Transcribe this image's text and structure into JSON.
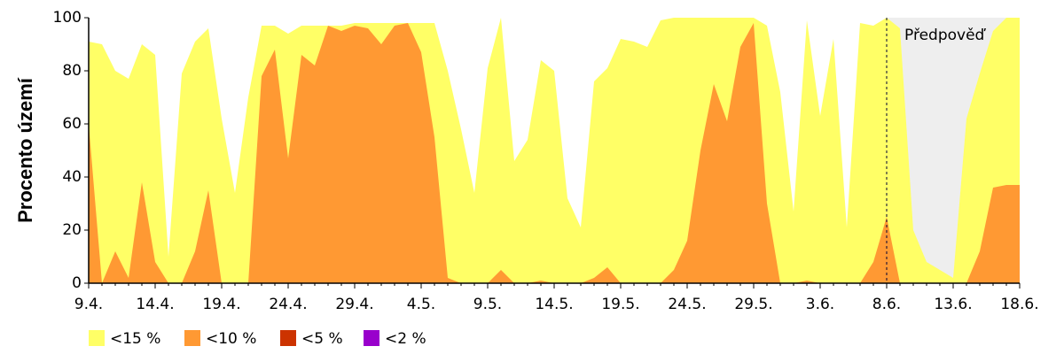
{
  "chart_data": {
    "type": "area",
    "ylabel": "Procento území",
    "annotation": "Předpověď",
    "forecast_start": "8.6.",
    "categories": [
      "9.4.",
      null,
      null,
      null,
      null,
      "14.4.",
      null,
      null,
      null,
      null,
      "19.4.",
      null,
      null,
      null,
      null,
      "24.4.",
      null,
      null,
      null,
      null,
      "29.4.",
      null,
      null,
      null,
      null,
      "4.5.",
      null,
      null,
      null,
      null,
      "9.5.",
      null,
      null,
      null,
      null,
      "14.5.",
      null,
      null,
      null,
      null,
      "19.5.",
      null,
      null,
      null,
      null,
      "24.5.",
      null,
      null,
      null,
      null,
      "29.5.",
      null,
      null,
      null,
      null,
      "3.6.",
      null,
      null,
      null,
      null,
      "8.6.",
      null,
      null,
      null,
      null,
      "13.6.",
      null,
      null,
      null,
      null,
      "18.6."
    ],
    "series": [
      {
        "name": "<15 %",
        "color": "#ffff66",
        "values": [
          91,
          90,
          80,
          77,
          90,
          86,
          10,
          79,
          91,
          96,
          62,
          34,
          70,
          97,
          97,
          94,
          97,
          97,
          97,
          97,
          98,
          98,
          98,
          98,
          98,
          98,
          98,
          80,
          58,
          34,
          81,
          100,
          46,
          54,
          84,
          80,
          32,
          21,
          76,
          81,
          92,
          91,
          89,
          99,
          100,
          100,
          100,
          100,
          100,
          100,
          100,
          97,
          72,
          27,
          99,
          63,
          92,
          21,
          98,
          97,
          100,
          96,
          20,
          8,
          5,
          2,
          62,
          79,
          95,
          100,
          100
        ]
      },
      {
        "name": "<10 %",
        "color": "#ff9933",
        "values": [
          60,
          0,
          12,
          2,
          38,
          8,
          0,
          0,
          12,
          35,
          0,
          0,
          0,
          78,
          88,
          47,
          86,
          82,
          97,
          95,
          97,
          96,
          90,
          97,
          98,
          87,
          55,
          2,
          0,
          0,
          0,
          5,
          0,
          0,
          1,
          0,
          0,
          0,
          2,
          6,
          0,
          0,
          0,
          0,
          5,
          16,
          50,
          75,
          61,
          89,
          98,
          30,
          0,
          0,
          1,
          0,
          0,
          0,
          0,
          8,
          25,
          0,
          0,
          0,
          0,
          0,
          0,
          12,
          36,
          37,
          37
        ]
      },
      {
        "name": "<5 %",
        "color": "#cc3300",
        "values": [
          0,
          0,
          0,
          0,
          0,
          0,
          0,
          0,
          0,
          0,
          0,
          0,
          0,
          0,
          0,
          0,
          0,
          0,
          0,
          0,
          0,
          0,
          0,
          0,
          0,
          0,
          0,
          0,
          0,
          0,
          0,
          0,
          0,
          0,
          0,
          0,
          0,
          0,
          0,
          0,
          0,
          0,
          0,
          0,
          0,
          0,
          0,
          0,
          0,
          0,
          0,
          0,
          0,
          0,
          0,
          0,
          0,
          0,
          0,
          0,
          0,
          0,
          0,
          0,
          0,
          0,
          0,
          0,
          0,
          0,
          0
        ]
      },
      {
        "name": "<2 %",
        "color": "#9900cc",
        "values": [
          0,
          0,
          0,
          0,
          0,
          0,
          0,
          0,
          0,
          0,
          0,
          0,
          0,
          0,
          0,
          0,
          0,
          0,
          0,
          0,
          0,
          0,
          0,
          0,
          0,
          0,
          0,
          0,
          0,
          0,
          0,
          0,
          0,
          0,
          0,
          0,
          0,
          0,
          0,
          0,
          0,
          0,
          0,
          0,
          0,
          0,
          0,
          0,
          0,
          0,
          0,
          0,
          0,
          0,
          0,
          0,
          0,
          0,
          0,
          0,
          0,
          0,
          0,
          0,
          0,
          0,
          0,
          0,
          0,
          0,
          0
        ]
      }
    ],
    "ylim": [
      0,
      100
    ],
    "yticks": [
      0,
      20,
      40,
      60,
      80,
      100
    ],
    "forecast_color": "#eeeeee"
  }
}
